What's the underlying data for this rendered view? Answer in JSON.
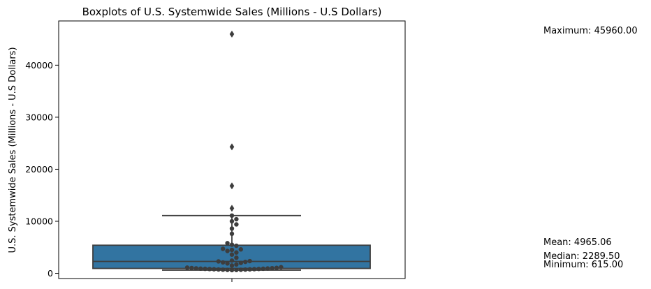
{
  "chart_data": {
    "type": "box",
    "title": "Boxplots of U.S. Systemwide Sales (Millions - U.S Dollars)",
    "xlabel": "",
    "ylabel": "U.S. Systemwide Sales (Millions - U.S Dollars)",
    "ylim": [
      -1000,
      48500
    ],
    "yticks": [
      0,
      10000,
      20000,
      30000,
      40000
    ],
    "box": {
      "color": "#3274a1",
      "q1": 940,
      "median": 2289.5,
      "q3": 5400,
      "whisker_low": 615,
      "whisker_high": 11100
    },
    "outliers": [
      12500,
      16800,
      24300,
      45960
    ],
    "swarm_points": [
      615,
      640,
      660,
      680,
      700,
      720,
      740,
      760,
      780,
      800,
      820,
      840,
      860,
      880,
      900,
      930,
      960,
      990,
      1020,
      1050,
      1100,
      1180,
      1500,
      1700,
      1900,
      2000,
      2100,
      2200,
      2289.5,
      2350,
      2450,
      3000,
      3600,
      4000,
      4300,
      4500,
      4600,
      4700,
      5300,
      5500,
      5800,
      7600,
      8600,
      9400,
      10000,
      10400,
      11100
    ],
    "stats": [
      {
        "label": "Maximum: 45960.00",
        "value": 45960
      },
      {
        "label": "Mean: 4965.06",
        "value": 4965.06
      },
      {
        "label": "Median: 2289.50",
        "value": 2289.5
      },
      {
        "label": "Minimum: 615.00",
        "value": 615
      }
    ]
  }
}
